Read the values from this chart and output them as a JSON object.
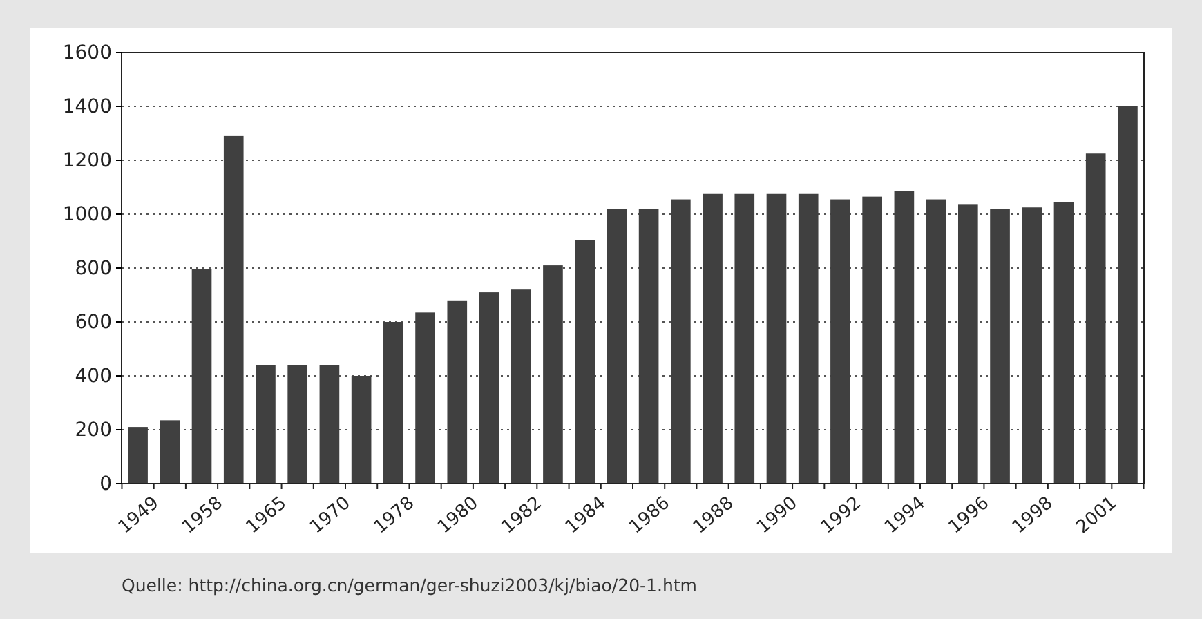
{
  "chart_data": {
    "type": "bar",
    "categories": [
      "1949",
      null,
      "1958",
      null,
      "1965",
      null,
      "1970",
      null,
      "1978",
      null,
      "1980",
      null,
      "1982",
      null,
      "1984",
      null,
      "1986",
      null,
      "1988",
      null,
      "1990",
      null,
      "1992",
      null,
      "1994",
      null,
      "1996",
      null,
      "1998",
      null,
      "2001",
      null
    ],
    "values": [
      210,
      235,
      795,
      1290,
      440,
      440,
      440,
      400,
      600,
      635,
      680,
      710,
      720,
      810,
      905,
      1020,
      1020,
      1055,
      1075,
      1075,
      1075,
      1075,
      1055,
      1065,
      1085,
      1055,
      1035,
      1020,
      1025,
      1045,
      1225,
      1400
    ],
    "color": "#404040",
    "ylim": [
      0,
      1600
    ],
    "yticks": [
      0,
      200,
      400,
      600,
      800,
      1000,
      1200,
      1400,
      1600
    ],
    "grid": "y",
    "annotations": [
      "Quelle: http://china.org.cn/german/ger-shuzi2003/kj/biao/20-1.htm"
    ]
  }
}
